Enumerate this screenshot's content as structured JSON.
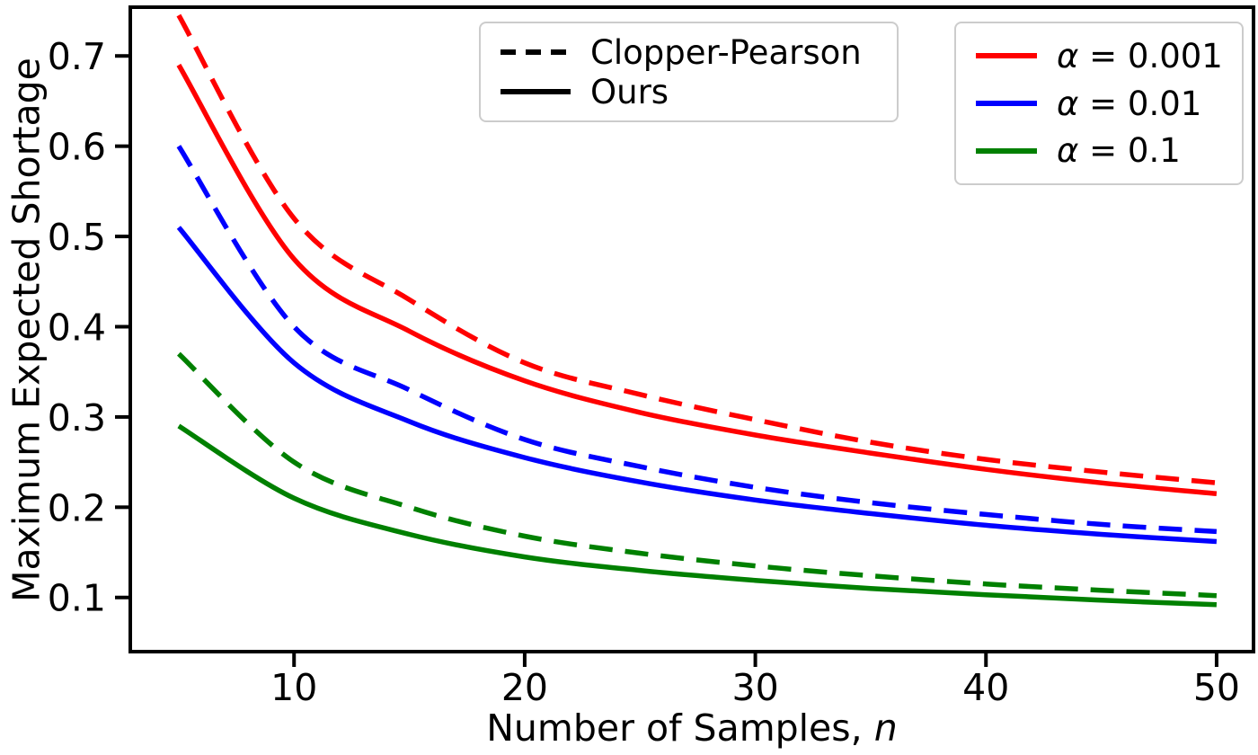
{
  "chart_data": {
    "type": "line",
    "title": "",
    "xlabel": "Number of Samples, n",
    "xlabel_parts": {
      "prefix": "Number of Samples, ",
      "italic_suffix": "n"
    },
    "ylabel": "Maximum Expected Shortage",
    "x": [
      5,
      10,
      15,
      20,
      25,
      30,
      35,
      40,
      45,
      50
    ],
    "xticks": [
      10,
      20,
      30,
      40,
      50
    ],
    "yticks": [
      0.1,
      0.2,
      0.3,
      0.4,
      0.5,
      0.6,
      0.7
    ],
    "xlim": [
      2.9,
      51.6
    ],
    "ylim": [
      0.04,
      0.754
    ],
    "grid": false,
    "series": [
      {
        "name": "Clopper-Pearson, alpha = 0.001",
        "method": "Clopper-Pearson",
        "alpha": 0.001,
        "color": "#ff0000",
        "style": "dashed",
        "values": [
          0.745,
          0.52,
          0.43,
          0.36,
          0.325,
          0.297,
          0.272,
          0.253,
          0.239,
          0.227
        ]
      },
      {
        "name": "Ours, alpha = 0.001",
        "method": "Ours",
        "alpha": 0.001,
        "color": "#ff0000",
        "style": "solid",
        "values": [
          0.69,
          0.475,
          0.395,
          0.34,
          0.305,
          0.28,
          0.26,
          0.242,
          0.227,
          0.215
        ]
      },
      {
        "name": "Clopper-Pearson, alpha = 0.01",
        "method": "Clopper-Pearson",
        "alpha": 0.01,
        "color": "#0000ff",
        "style": "dashed",
        "values": [
          0.6,
          0.4,
          0.33,
          0.275,
          0.245,
          0.222,
          0.205,
          0.192,
          0.181,
          0.173
        ]
      },
      {
        "name": "Ours, alpha = 0.01",
        "method": "Ours",
        "alpha": 0.01,
        "color": "#0000ff",
        "style": "solid",
        "values": [
          0.51,
          0.36,
          0.295,
          0.255,
          0.228,
          0.208,
          0.193,
          0.18,
          0.17,
          0.162
        ]
      },
      {
        "name": "Clopper-Pearson, alpha = 0.1",
        "method": "Clopper-Pearson",
        "alpha": 0.1,
        "color": "#008000",
        "style": "dashed",
        "values": [
          0.37,
          0.25,
          0.2,
          0.168,
          0.149,
          0.135,
          0.124,
          0.115,
          0.108,
          0.102
        ]
      },
      {
        "name": "Ours, alpha = 0.1",
        "method": "Ours",
        "alpha": 0.1,
        "color": "#008000",
        "style": "solid",
        "values": [
          0.29,
          0.21,
          0.17,
          0.145,
          0.13,
          0.119,
          0.11,
          0.103,
          0.097,
          0.092
        ]
      }
    ],
    "legends": {
      "style_legend": {
        "entries": [
          {
            "label": "Clopper-Pearson",
            "style": "dashed",
            "color": "#000000"
          },
          {
            "label": "Ours",
            "style": "solid",
            "color": "#000000"
          }
        ]
      },
      "alpha_legend": {
        "entries": [
          {
            "symbol": "α",
            "value_text": " = 0.001",
            "label": "α = 0.001",
            "color": "#ff0000"
          },
          {
            "symbol": "α",
            "value_text": " = 0.01",
            "label": "α = 0.01",
            "color": "#0000ff"
          },
          {
            "symbol": "α",
            "value_text": " = 0.1",
            "label": "α = 0.1",
            "color": "#008000"
          }
        ]
      }
    },
    "colors": {
      "axis": "#000000",
      "tick_labels": "#000000",
      "legend_border": "#cccccc",
      "background": "#ffffff"
    }
  }
}
